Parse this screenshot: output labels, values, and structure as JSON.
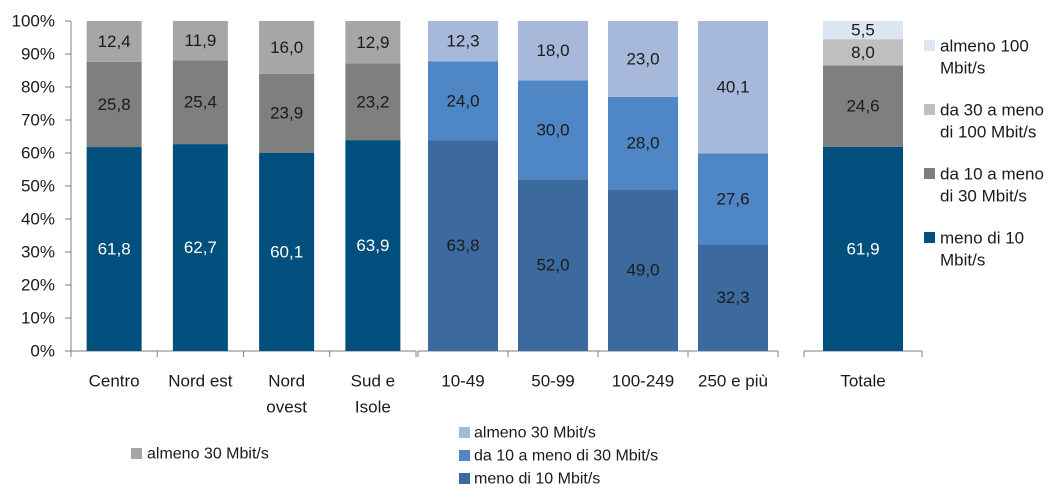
{
  "chart_data": [
    {
      "type": "bar",
      "stacked": true,
      "ylim": [
        0,
        100
      ],
      "y_ticks": [
        "0%",
        "10%",
        "20%",
        "30%",
        "40%",
        "50%",
        "60%",
        "70%",
        "80%",
        "90%",
        "100%"
      ],
      "categories": [
        [
          "Centro"
        ],
        [
          "Nord est"
        ],
        [
          "Nord",
          "ovest"
        ],
        [
          "Sud e",
          "Isole"
        ]
      ],
      "series": [
        {
          "values": [
            61.8,
            62.7,
            60.1,
            63.9
          ],
          "labels": [
            "61,8",
            "62,7",
            "60,1",
            "63,9"
          ],
          "color": "#004f7c",
          "label_color": "#ffffff"
        },
        {
          "values": [
            25.8,
            25.4,
            23.9,
            23.2
          ],
          "labels": [
            "25,8",
            "25,4",
            "23,9",
            "23,2"
          ],
          "color": "#7f7f7f",
          "label_color": "#1a1a1a"
        },
        {
          "name": "almeno 30 Mbit/s",
          "values": [
            12.4,
            11.9,
            16.0,
            12.9
          ],
          "labels": [
            "12,4",
            "11,9",
            "16,0",
            "12,9"
          ],
          "color": "#a6a6a6",
          "label_color": "#1a1a1a"
        }
      ],
      "legend": [
        {
          "label": "almeno 30 Mbit/s",
          "color": "#a6a6a6"
        }
      ]
    },
    {
      "type": "bar",
      "stacked": true,
      "ylim": [
        0,
        100
      ],
      "categories": [
        [
          "10-49"
        ],
        [
          "50-99"
        ],
        [
          "100-249"
        ],
        [
          "250 e più"
        ]
      ],
      "series": [
        {
          "name": "meno di 10 Mbit/s",
          "values": [
            63.8,
            52.0,
            49.0,
            32.3
          ],
          "labels": [
            "63,8",
            "52,0",
            "49,0",
            "32,3"
          ],
          "color": "#3d6a9e",
          "label_color": "#1a1a1a"
        },
        {
          "name": "da 10 a meno di 30 Mbit/s",
          "values": [
            24.0,
            30.0,
            28.0,
            27.6
          ],
          "labels": [
            "24,0",
            "30,0",
            "28,0",
            "27,6"
          ],
          "color": "#4f87c6",
          "label_color": "#1a1a1a"
        },
        {
          "name": "almeno 30 Mbit/s",
          "values": [
            12.3,
            18.0,
            23.0,
            40.1
          ],
          "labels": [
            "12,3",
            "18,0",
            "23,0",
            "40,1"
          ],
          "color": "#a7b9da",
          "label_color": "#1a1a1a"
        }
      ],
      "legend": [
        {
          "label": "almeno 30 Mbit/s",
          "color": "#a7b9da"
        },
        {
          "label": "da 10 a meno di 30 Mbit/s",
          "color": "#4f87c6"
        },
        {
          "label": "meno di 10 Mbit/s",
          "color": "#3d6a9e"
        }
      ]
    },
    {
      "type": "bar",
      "stacked": true,
      "ylim": [
        0,
        100
      ],
      "categories": [
        [
          "Totale"
        ]
      ],
      "series": [
        {
          "name": "meno di 10 Mbit/s",
          "values": [
            61.9
          ],
          "labels": [
            "61,9"
          ],
          "color": "#004f7c",
          "label_color": "#ffffff"
        },
        {
          "name": "da 10 a meno di 30 Mbit/s",
          "values": [
            24.6
          ],
          "labels": [
            "24,6"
          ],
          "color": "#7f7f7f",
          "label_color": "#1a1a1a"
        },
        {
          "name": "da 30 a meno di 100 Mbit/s",
          "values": [
            8.0
          ],
          "labels": [
            "8,0"
          ],
          "color": "#bfbfbf",
          "label_color": "#1a1a1a"
        },
        {
          "name": "almeno 100 Mbit/s",
          "values": [
            5.5
          ],
          "labels": [
            "5,5"
          ],
          "color": "#dce6f2",
          "label_color": "#1a1a1a"
        }
      ],
      "legend": [
        {
          "lines": [
            "almeno 100",
            "Mbit/s"
          ],
          "color": "#dce6f2"
        },
        {
          "lines": [
            "da 30 a meno",
            "di 100 Mbit/s"
          ],
          "color": "#bfbfbf"
        },
        {
          "lines": [
            "da 10 a meno",
            "di 30 Mbit/s"
          ],
          "color": "#7f7f7f"
        },
        {
          "lines": [
            "meno di 10",
            "Mbit/s"
          ],
          "color": "#004f7c"
        }
      ]
    }
  ]
}
